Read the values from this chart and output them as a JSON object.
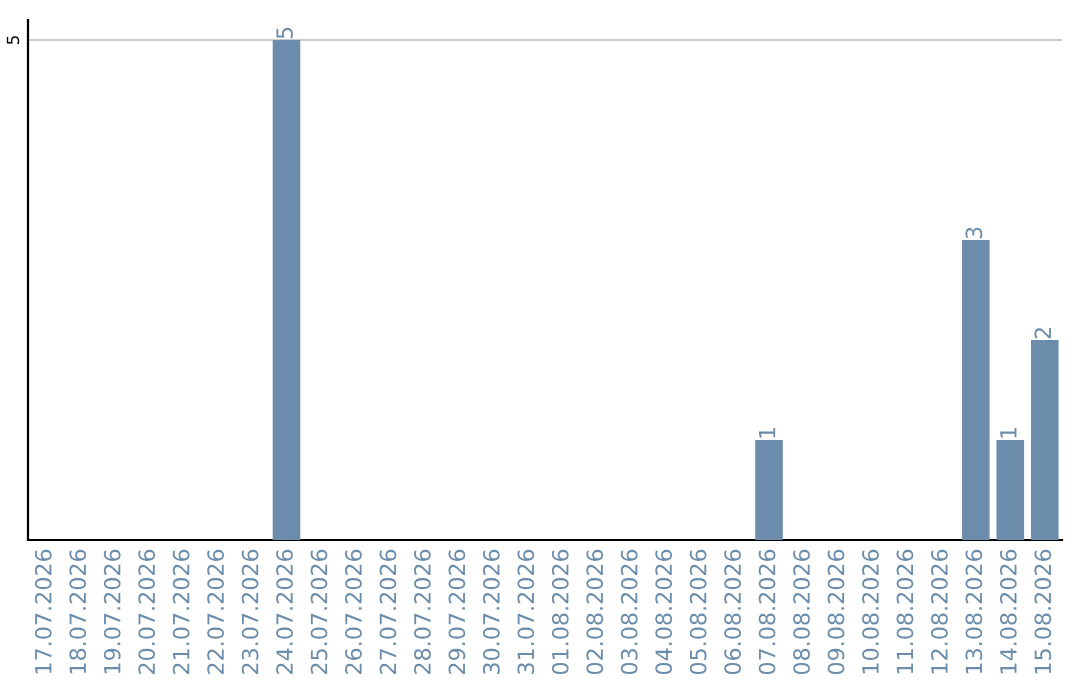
{
  "chart_data": {
    "type": "bar",
    "categories": [
      "17.07.2026",
      "18.07.2026",
      "19.07.2026",
      "20.07.2026",
      "21.07.2026",
      "22.07.2026",
      "23.07.2026",
      "24.07.2026",
      "25.07.2026",
      "26.07.2026",
      "27.07.2026",
      "28.07.2026",
      "29.07.2026",
      "30.07.2026",
      "31.07.2026",
      "01.08.2026",
      "02.08.2026",
      "03.08.2026",
      "04.08.2026",
      "05.08.2026",
      "06.08.2026",
      "07.08.2026",
      "08.08.2026",
      "09.08.2026",
      "10.08.2026",
      "11.08.2026",
      "12.08.2026",
      "13.08.2026",
      "14.08.2026",
      "15.08.2026"
    ],
    "values": [
      0,
      0,
      0,
      0,
      0,
      0,
      0,
      5,
      0,
      0,
      0,
      0,
      0,
      0,
      0,
      0,
      0,
      0,
      0,
      0,
      0,
      1,
      0,
      0,
      0,
      0,
      0,
      3,
      1,
      2
    ],
    "value_labels": [
      null,
      null,
      null,
      null,
      null,
      null,
      null,
      "5",
      null,
      null,
      null,
      null,
      null,
      null,
      null,
      null,
      null,
      null,
      null,
      null,
      null,
      "1",
      null,
      null,
      null,
      null,
      null,
      "3",
      "1",
      "2"
    ],
    "color": "#6b8caa",
    "ylim": [
      0,
      5.2
    ],
    "yticks": [
      5
    ],
    "grid": "y"
  }
}
